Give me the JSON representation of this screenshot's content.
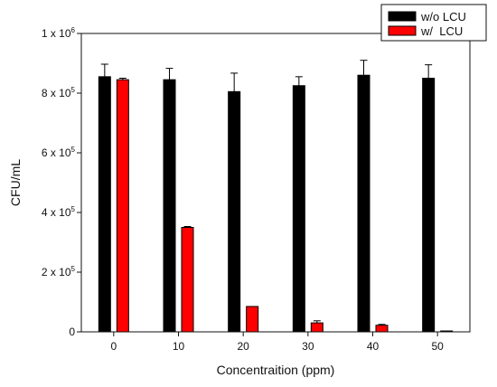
{
  "chart_data": {
    "type": "bar",
    "categories": [
      "0",
      "10",
      "20",
      "30",
      "40",
      "50"
    ],
    "series": [
      {
        "name": "w/o LCU",
        "color": "#000000",
        "values": [
          855000,
          845000,
          805000,
          825000,
          860000,
          850000
        ],
        "errors": [
          42000,
          38000,
          62000,
          30000,
          50000,
          45000
        ]
      },
      {
        "name": "w/  LCU",
        "color": "#ff0000",
        "values": [
          845000,
          350000,
          85000,
          30000,
          22000,
          2000
        ],
        "errors": [
          5000,
          3000,
          0,
          7000,
          3000,
          1000
        ]
      }
    ],
    "xlabel": "Concentraition (ppm)",
    "ylabel": "CFU/mL",
    "ylim": [
      0,
      1000000
    ],
    "yticks": [
      {
        "value": 0,
        "mantissa": "0",
        "exponent": ""
      },
      {
        "value": 200000,
        "mantissa": "2 x 10",
        "exponent": "5"
      },
      {
        "value": 400000,
        "mantissa": "4 x 10",
        "exponent": "5"
      },
      {
        "value": 600000,
        "mantissa": "6 x 10",
        "exponent": "5"
      },
      {
        "value": 800000,
        "mantissa": "8 x 10",
        "exponent": "5"
      },
      {
        "value": 1000000,
        "mantissa": "1 x 10",
        "exponent": "6"
      }
    ],
    "grid": false,
    "legend_position": "top-right"
  }
}
